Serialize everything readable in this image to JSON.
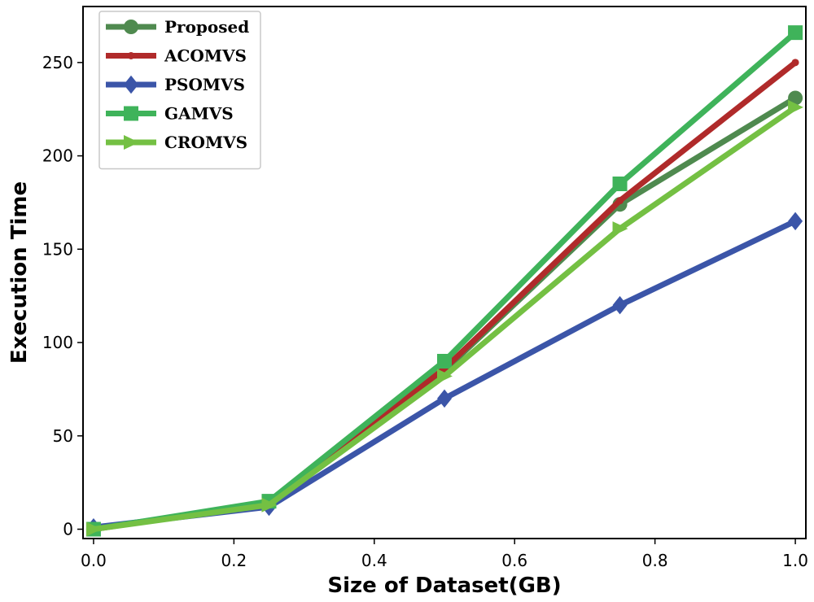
{
  "chart_data": {
    "type": "line",
    "title": "",
    "xlabel": "Size of Dataset(GB)",
    "ylabel": "Execution Time",
    "xlim": [
      0,
      1.0
    ],
    "ylim": [
      0,
      270
    ],
    "xticks": [
      "0.0",
      "0.2",
      "0.4",
      "0.6",
      "0.8",
      "1.0"
    ],
    "yticks": [
      "0",
      "50",
      "100",
      "150",
      "200",
      "250"
    ],
    "x": [
      0,
      0.25,
      0.5,
      0.75,
      1.0
    ],
    "grid": false,
    "legend_position": "top-left",
    "series": [
      {
        "name": "Proposed",
        "values": [
          0,
          14,
          85,
          174,
          231
        ],
        "color": "#4f8a4f",
        "marker": "circle"
      },
      {
        "name": "ACOMVS",
        "values": [
          0,
          14,
          86,
          176,
          250
        ],
        "color": "#b02a2a",
        "marker": "dot"
      },
      {
        "name": "PSOMVS",
        "values": [
          1,
          12,
          70,
          120,
          165
        ],
        "color": "#3b55a8",
        "marker": "diamond"
      },
      {
        "name": "GAMVS",
        "values": [
          0,
          15,
          90,
          185,
          266
        ],
        "color": "#3fb35a",
        "marker": "square"
      },
      {
        "name": "CROMVS",
        "values": [
          0,
          13,
          82,
          161,
          226
        ],
        "color": "#74c043",
        "marker": "triangle-right"
      }
    ]
  }
}
